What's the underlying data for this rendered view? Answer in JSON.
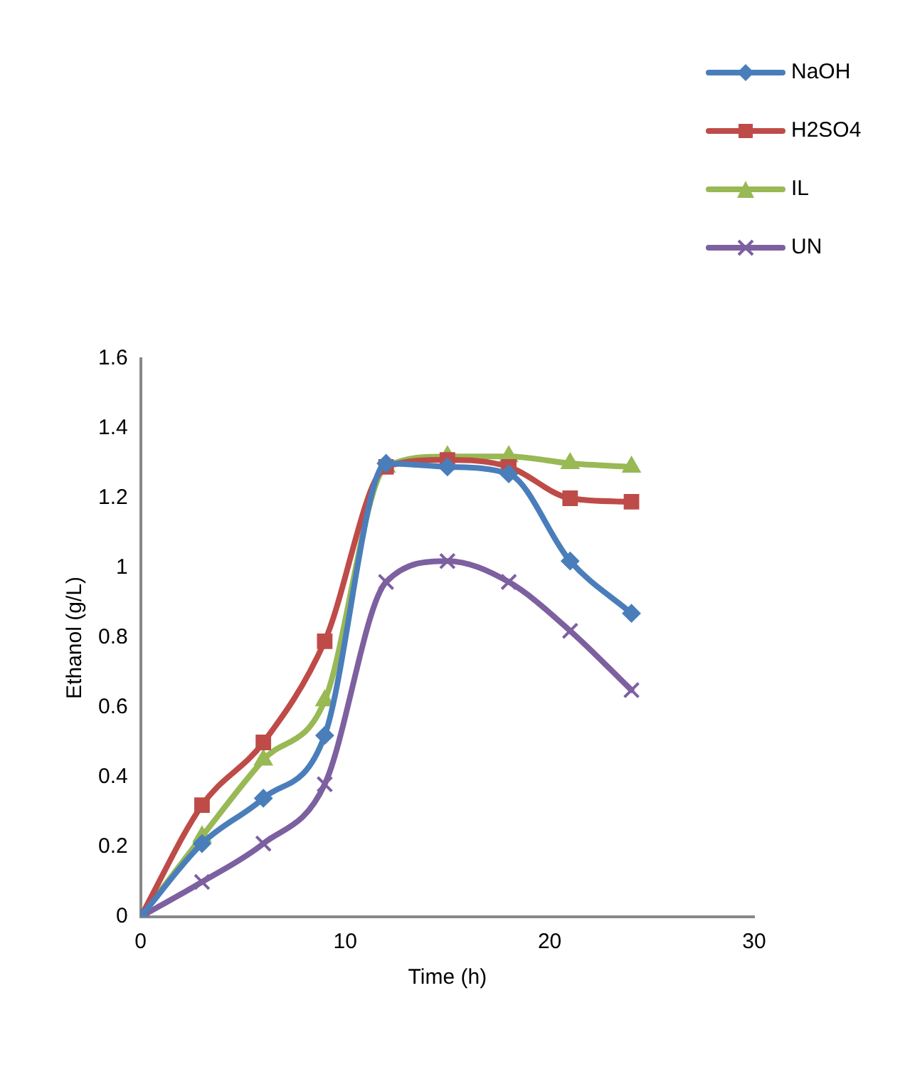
{
  "chart_data": {
    "type": "line",
    "xlabel": "Time (h)",
    "ylabel": "Ethanol (g/L)",
    "x": [
      0,
      3,
      6,
      9,
      12,
      15,
      18,
      21,
      24
    ],
    "xlim": [
      0,
      30
    ],
    "xticks": [
      0,
      10,
      20,
      30
    ],
    "ylim": [
      0,
      1.6
    ],
    "yticks": [
      0,
      0.2,
      0.4,
      0.6,
      0.8,
      1,
      1.2,
      1.4,
      1.6
    ],
    "grid": false,
    "legend": "top right",
    "series": [
      {
        "name": "NaOH",
        "color": "#4a7ebb",
        "marker": "diamond",
        "values": [
          0,
          0.21,
          0.34,
          0.52,
          1.3,
          1.29,
          1.27,
          1.02,
          0.87
        ]
      },
      {
        "name": "H2SO4",
        "color": "#be4b48",
        "marker": "square",
        "values": [
          0,
          0.32,
          0.5,
          0.79,
          1.29,
          1.31,
          1.29,
          1.2,
          1.19
        ]
      },
      {
        "name": "IL",
        "color": "#98b954",
        "marker": "triangle",
        "values": [
          0,
          0.23,
          0.45,
          0.62,
          1.29,
          1.32,
          1.32,
          1.3,
          1.29
        ]
      },
      {
        "name": "UN",
        "color": "#7d60a0",
        "marker": "cross",
        "values": [
          0,
          0.1,
          0.21,
          0.38,
          0.96,
          1.02,
          0.96,
          0.82,
          0.65
        ]
      }
    ]
  }
}
